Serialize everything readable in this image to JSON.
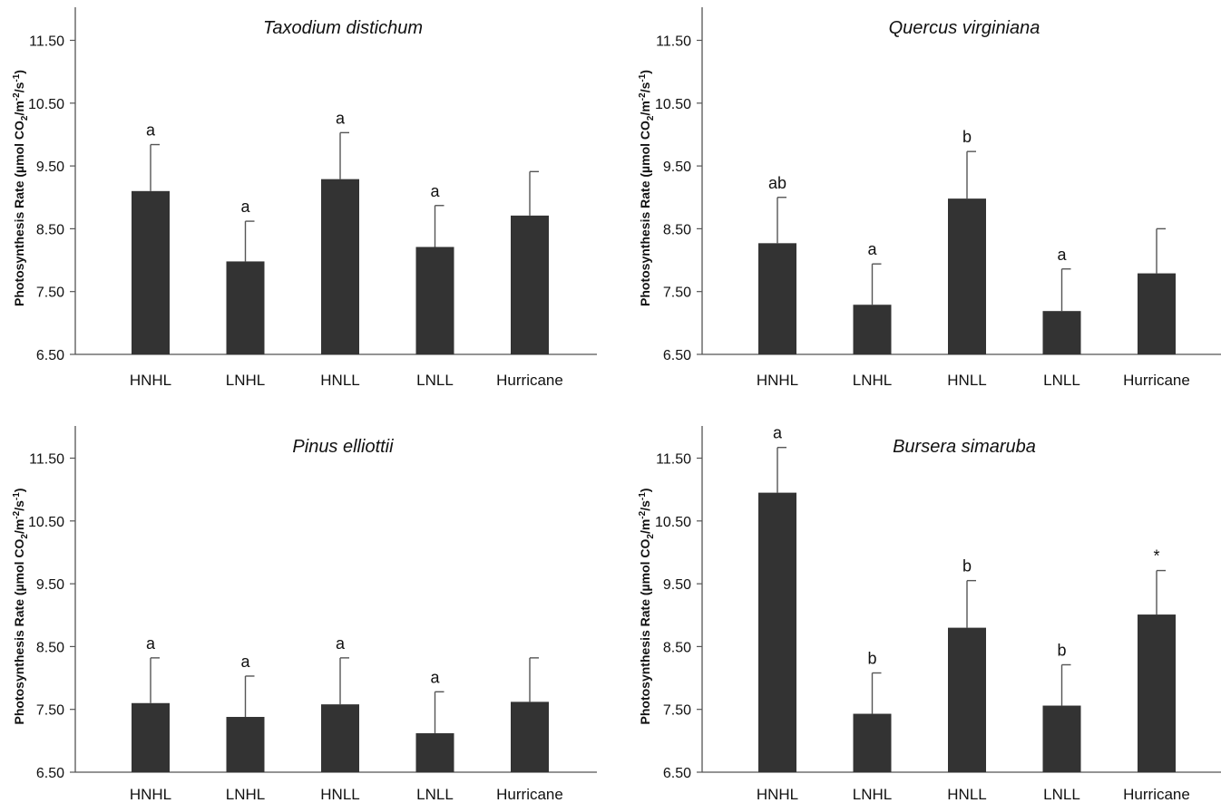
{
  "colors": {
    "bar": "#333333",
    "axis": "#555555",
    "error_bar": "#555555",
    "text": "#111111"
  },
  "y_unit_parts": {
    "prefix": "Photosynthesis Rate (µmol CO",
    "sub2": "2",
    "mid": "/m",
    "sup1": "-2",
    "mid2": "/s",
    "sup2": "-1",
    "suffix": ")"
  },
  "chart_data": [
    {
      "type": "bar",
      "title": "Taxodium distichum",
      "ylabel": "Photosynthesis Rate (µmol CO2/m-2/s-1)",
      "categories": [
        "HNHL",
        "LNHL",
        "HNLL",
        "LNLL",
        "Hurricane"
      ],
      "values": [
        9.1,
        7.98,
        9.29,
        8.21,
        8.71
      ],
      "errors": [
        0.74,
        0.64,
        0.74,
        0.66,
        0.7
      ],
      "significance": [
        "a",
        "a",
        "a",
        "a",
        ""
      ],
      "ylim": [
        6.5,
        12.0
      ],
      "yticks": [
        "6.50",
        "7.50",
        "8.50",
        "9.50",
        "10.50",
        "11.50"
      ],
      "grid": false
    },
    {
      "type": "bar",
      "title": "Quercus virginiana",
      "ylabel": "Photosynthesis Rate (µmol CO2/m-2/s-1)",
      "categories": [
        "HNHL",
        "LNHL",
        "HNLL",
        "LNLL",
        "Hurricane"
      ],
      "values": [
        8.27,
        7.29,
        8.98,
        7.19,
        7.79
      ],
      "errors": [
        0.73,
        0.65,
        0.75,
        0.67,
        0.71
      ],
      "significance": [
        "ab",
        "a",
        "b",
        "a",
        ""
      ],
      "ylim": [
        6.5,
        12.0
      ],
      "yticks": [
        "6.50",
        "7.50",
        "8.50",
        "9.50",
        "10.50",
        "11.50"
      ],
      "grid": false
    },
    {
      "type": "bar",
      "title": "Pinus elliottii",
      "ylabel": "Photosynthesis Rate (µmol CO2/m-2/s-1)",
      "categories": [
        "HNHL",
        "LNHL",
        "HNLL",
        "LNLL",
        "Hurricane"
      ],
      "values": [
        7.6,
        7.38,
        7.58,
        7.12,
        7.62
      ],
      "errors": [
        0.72,
        0.65,
        0.74,
        0.66,
        0.7
      ],
      "significance": [
        "a",
        "a",
        "a",
        "a",
        ""
      ],
      "ylim": [
        6.5,
        12.0
      ],
      "yticks": [
        "6.50",
        "7.50",
        "8.50",
        "9.50",
        "10.50",
        "11.50"
      ],
      "grid": false
    },
    {
      "type": "bar",
      "title": "Bursera simaruba",
      "ylabel": "Photosynthesis Rate (µmol CO2/m-2/s-1)",
      "categories": [
        "HNHL",
        "LNHL",
        "HNLL",
        "LNLL",
        "Hurricane"
      ],
      "values": [
        10.95,
        7.43,
        8.8,
        7.56,
        9.01
      ],
      "errors": [
        0.72,
        0.65,
        0.75,
        0.65,
        0.7
      ],
      "significance": [
        "a",
        "b",
        "b",
        "b",
        "*"
      ],
      "ylim": [
        6.5,
        12.0
      ],
      "yticks": [
        "6.50",
        "7.50",
        "8.50",
        "9.50",
        "10.50",
        "11.50"
      ],
      "grid": false
    }
  ]
}
